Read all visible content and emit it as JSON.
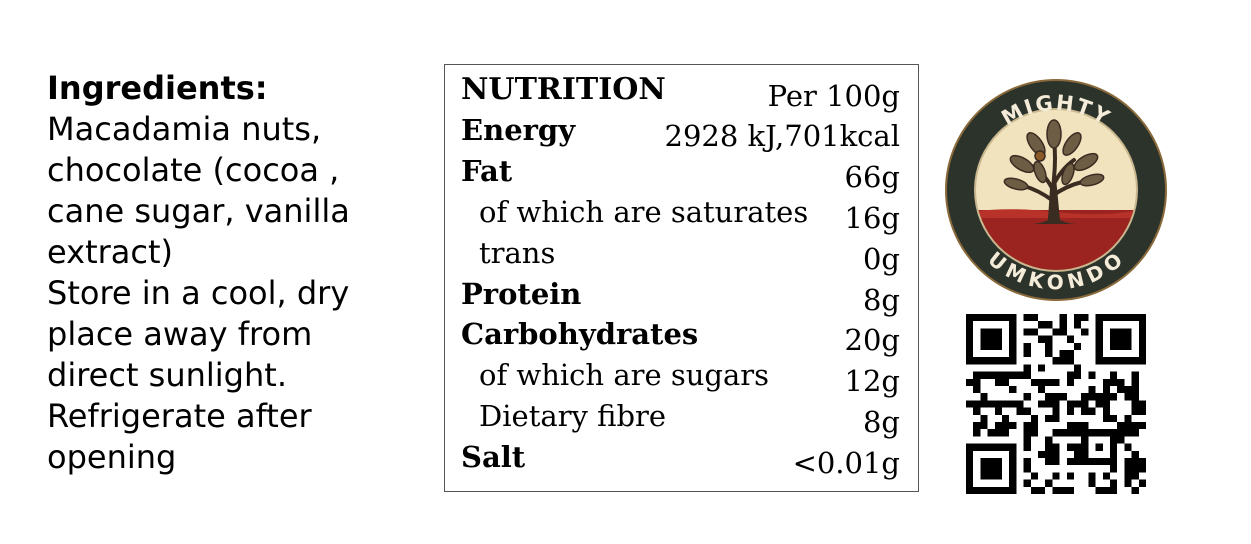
{
  "ingredients": {
    "heading": "Ingredients:",
    "lines": [
      "Macadamia nuts,",
      "chocolate (cocoa ,",
      "cane sugar, vanilla",
      "extract)",
      "Store in a cool, dry",
      "place away from",
      "direct sunlight.",
      "Refrigerate after",
      "opening"
    ]
  },
  "nutrition": {
    "title": "NUTRITION",
    "per": "Per 100g",
    "rows": [
      {
        "label": "Energy",
        "value": "2928 kJ,701kcal"
      },
      {
        "label": "Fat",
        "value": "66g"
      },
      {
        "label": "of which are saturates",
        "value": "16g"
      },
      {
        "label": "trans",
        "value": "0g"
      },
      {
        "label": "Protein",
        "value": "8g"
      },
      {
        "label": "Carbohydrates",
        "value": "20g"
      },
      {
        "label": "of which are sugars",
        "value": "12g"
      },
      {
        "label": "Dietary fibre",
        "value": "8g"
      },
      {
        "label": "Salt",
        "value": "<0.01g"
      }
    ]
  },
  "logo": {
    "top_text": "MIGHTY",
    "bottom_text": "UMKONDO",
    "colors": {
      "ring": "#2c332b",
      "cream": "#f0e3bd",
      "soil": "#9c2420",
      "tree": "#3b2c22",
      "leaf": "#6e5d45"
    }
  },
  "qr": {
    "icon": "qr-code-icon"
  }
}
